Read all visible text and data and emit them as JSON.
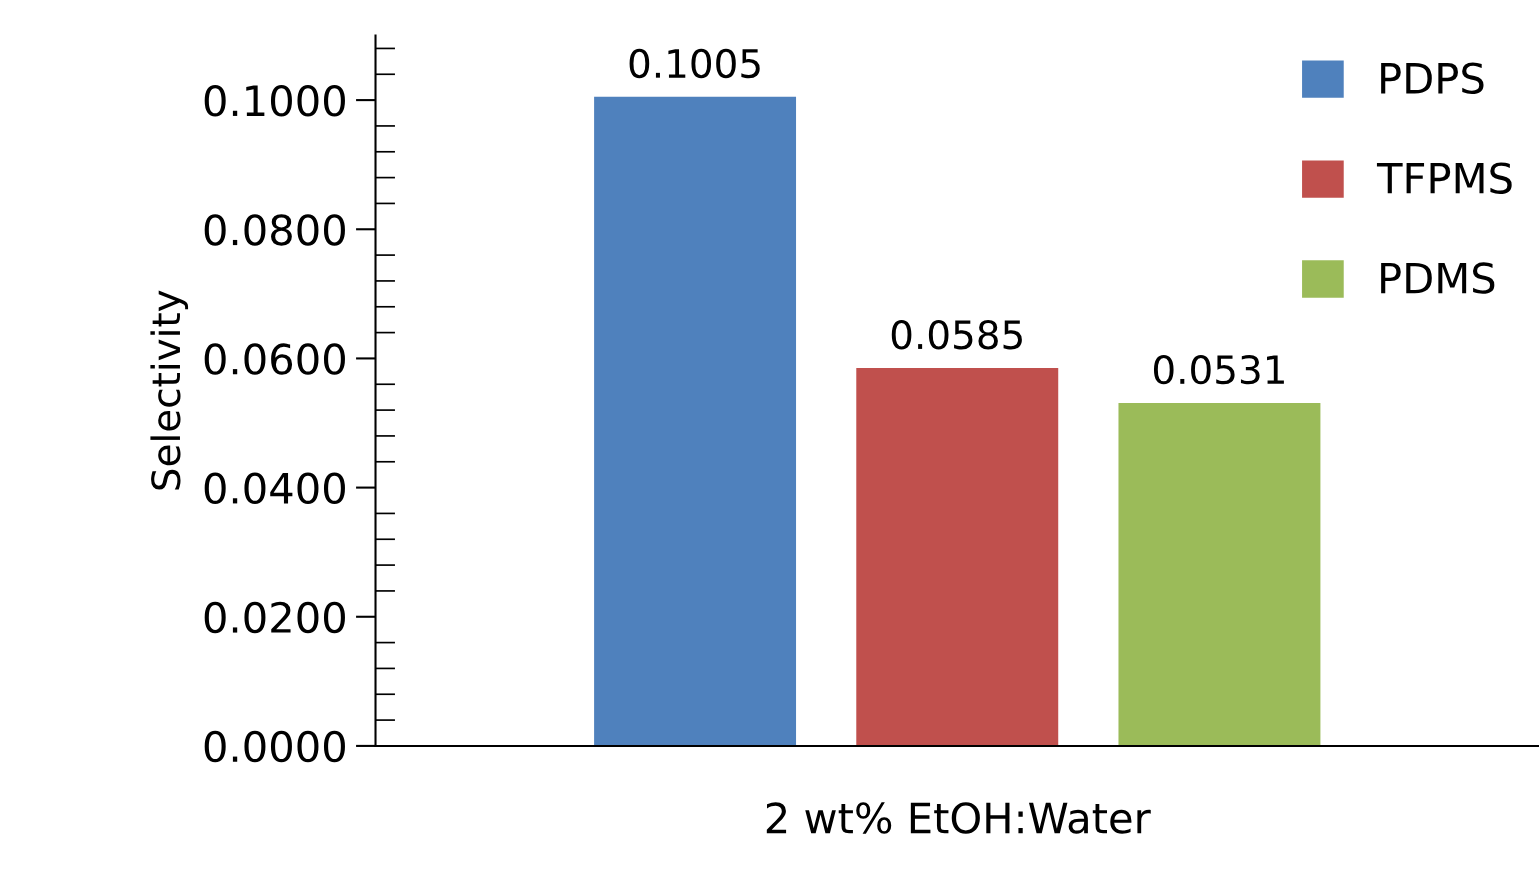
{
  "chart_data": {
    "type": "bar",
    "ylabel": "Selectivity",
    "categories": [
      "2 wt% EtOH:Water"
    ],
    "series": [
      {
        "name": "PDPS",
        "color": "#4f81bd",
        "values": [
          0.1005
        ]
      },
      {
        "name": "TFPMS",
        "color": "#c0504d",
        "values": [
          0.0585
        ]
      },
      {
        "name": "PDMS",
        "color": "#9bbb59",
        "values": [
          0.0531
        ]
      }
    ],
    "ylim": [
      0,
      0.11
    ],
    "yticks": [
      {
        "value": 0,
        "label": "0.0000"
      },
      {
        "value": 0.02,
        "label": "0.0200"
      },
      {
        "value": 0.04,
        "label": "0.0400"
      },
      {
        "value": 0.06,
        "label": "0.0600"
      },
      {
        "value": 0.08,
        "label": "0.0800"
      },
      {
        "value": 0.1,
        "label": "0.1000"
      }
    ],
    "data_labels": true,
    "legend": "top right",
    "grid": false
  }
}
